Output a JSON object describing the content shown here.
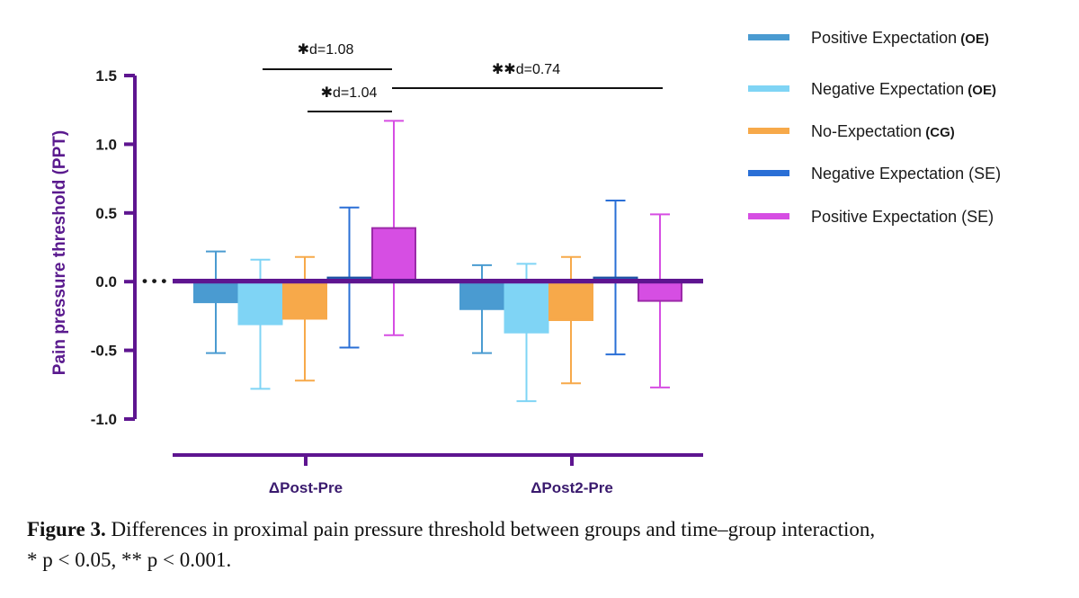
{
  "chart_data": {
    "type": "bar",
    "title": "",
    "xlabel": "",
    "ylabel": "Pain pressure threshold (PPT)",
    "ylim": [
      -1.0,
      1.5
    ],
    "yticks": [
      "-1.0",
      "-0.5",
      "0.0",
      "0.5",
      "1.0",
      "1.5"
    ],
    "ytick_values": [
      -1.0,
      -0.5,
      0.0,
      0.5,
      1.0,
      1.5
    ],
    "categories": [
      "ΔPost-Pre",
      "ΔPost2-Pre"
    ],
    "legend_position": "right",
    "series": [
      {
        "name": "Positive Expectation",
        "group": "(OE)",
        "color": "#4a9bd1",
        "values": [
          -0.15,
          -0.2
        ],
        "error": [
          0.37,
          0.32
        ]
      },
      {
        "name": "Negative Expectation",
        "group": "(OE)",
        "color": "#7fd4f5",
        "values": [
          -0.31,
          -0.37
        ],
        "error": [
          0.47,
          0.5
        ]
      },
      {
        "name": "No-Expectation",
        "group": "(CG)",
        "color": "#f7a94a",
        "values": [
          -0.27,
          -0.28
        ],
        "error": [
          0.45,
          0.46
        ]
      },
      {
        "name": "Negative Expectation (SE)",
        "group": "",
        "color": "#2a6fd6",
        "values": [
          0.03,
          0.03
        ],
        "error": [
          0.51,
          0.56
        ]
      },
      {
        "name": "Positive Expectation (SE)",
        "group": "",
        "color": "#d64ee3",
        "values": [
          0.39,
          -0.14
        ],
        "error": [
          0.78,
          0.63
        ]
      }
    ],
    "annotations": [
      {
        "label": "✱d=1.08",
        "from": [
          0,
          1
        ],
        "to": [
          0,
          4
        ]
      },
      {
        "label": "✱d=1.04",
        "from": [
          0,
          3
        ],
        "to": [
          0,
          4
        ]
      },
      {
        "label": "✱✱d=0.74",
        "from": [
          0,
          4
        ],
        "to": [
          1,
          4
        ]
      }
    ]
  },
  "caption": {
    "label": "Figure 3.",
    "text": "Differences in proximal pain pressure threshold between groups and time–group interaction,",
    "stats": "* p < 0.05, ** p < 0.001."
  }
}
